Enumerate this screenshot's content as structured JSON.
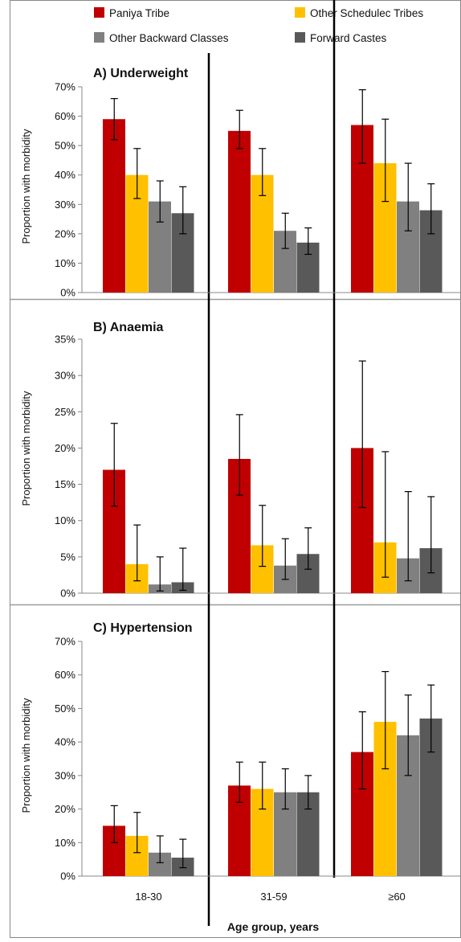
{
  "chart_data": [
    {
      "type": "bar",
      "title": "A) Underweight",
      "ylabel": "Proportion with morbidity",
      "xlabel": "",
      "ylim": [
        0,
        70
      ],
      "yticks": [
        "0%",
        "10%",
        "20%",
        "30%",
        "40%",
        "50%",
        "60%",
        "70%"
      ],
      "categories": [
        "18-30",
        "31-59",
        "≥60"
      ],
      "series": [
        {
          "name": "Paniya Tribe",
          "color": "#c00000",
          "values": [
            59,
            55,
            57
          ],
          "err_low": [
            52,
            49,
            44
          ],
          "err_high": [
            66,
            62,
            69
          ]
        },
        {
          "name": "Other Schedulec Tribes",
          "color": "#ffc000",
          "values": [
            40,
            40,
            44
          ],
          "err_low": [
            32,
            33,
            31
          ],
          "err_high": [
            49,
            49,
            59
          ]
        },
        {
          "name": "Other Backward Classes",
          "color": "#808080",
          "values": [
            31,
            21,
            31
          ],
          "err_low": [
            24,
            15,
            21
          ],
          "err_high": [
            38,
            27,
            44
          ]
        },
        {
          "name": "Forward Castes",
          "color": "#595959",
          "values": [
            27,
            17,
            28
          ],
          "err_low": [
            20,
            13,
            20
          ],
          "err_high": [
            36,
            22,
            37
          ]
        }
      ]
    },
    {
      "type": "bar",
      "title": "B) Anaemia",
      "ylabel": "Proportion with morbidity",
      "xlabel": "",
      "ylim": [
        0,
        35
      ],
      "yticks": [
        "0%",
        "5%",
        "10%",
        "15%",
        "20%",
        "25%",
        "30%",
        "35%"
      ],
      "categories": [
        "18-30",
        "31-59",
        "≥60"
      ],
      "series": [
        {
          "name": "Paniya Tribe",
          "color": "#c00000",
          "values": [
            17,
            18.5,
            20
          ],
          "err_low": [
            12,
            13.5,
            11.8
          ],
          "err_high": [
            23.4,
            24.6,
            32
          ]
        },
        {
          "name": "Other Schedulec Tribes",
          "color": "#ffc000",
          "values": [
            4,
            6.6,
            7
          ],
          "err_low": [
            1.7,
            3.7,
            2.2
          ],
          "err_high": [
            9.4,
            12.1,
            19.5
          ]
        },
        {
          "name": "Other Backward Classes",
          "color": "#808080",
          "values": [
            1.2,
            3.8,
            4.8
          ],
          "err_low": [
            0.3,
            1.9,
            1.7
          ],
          "err_high": [
            5,
            7.5,
            14
          ]
        },
        {
          "name": "Forward Castes",
          "color": "#595959",
          "values": [
            1.5,
            5.4,
            6.2
          ],
          "err_low": [
            0.4,
            3.3,
            2.8
          ],
          "err_high": [
            6.2,
            9,
            13.3
          ]
        }
      ]
    },
    {
      "type": "bar",
      "title": "C) Hypertension",
      "ylabel": "Proportion with morbidity",
      "xlabel": "Age group, years",
      "ylim": [
        0,
        70
      ],
      "yticks": [
        "0%",
        "10%",
        "20%",
        "30%",
        "40%",
        "50%",
        "60%",
        "70%"
      ],
      "categories": [
        "18-30",
        "31-59",
        "≥60"
      ],
      "series": [
        {
          "name": "Paniya Tribe",
          "color": "#c00000",
          "values": [
            15,
            27,
            37
          ],
          "err_low": [
            10,
            22,
            26
          ],
          "err_high": [
            21,
            34,
            49
          ]
        },
        {
          "name": "Other Schedulec Tribes",
          "color": "#ffc000",
          "values": [
            12,
            26,
            46
          ],
          "err_low": [
            7,
            20,
            32
          ],
          "err_high": [
            19,
            34,
            61
          ]
        },
        {
          "name": "Other Backward Classes",
          "color": "#808080",
          "values": [
            7,
            25,
            42
          ],
          "err_low": [
            4,
            20,
            30
          ],
          "err_high": [
            12,
            32,
            54
          ]
        },
        {
          "name": "Forward Castes",
          "color": "#595959",
          "values": [
            5.5,
            25,
            47
          ],
          "err_low": [
            2.5,
            20,
            37
          ],
          "err_high": [
            11,
            30,
            57
          ]
        }
      ]
    }
  ],
  "legend": {
    "items": [
      {
        "label": "Paniya Tribe",
        "color": "#c00000"
      },
      {
        "label": "Other Schedulec Tribes",
        "color": "#ffc000"
      },
      {
        "label": "Other Backward Classes",
        "color": "#808080"
      },
      {
        "label": "Forward Castes",
        "color": "#595959"
      }
    ]
  }
}
